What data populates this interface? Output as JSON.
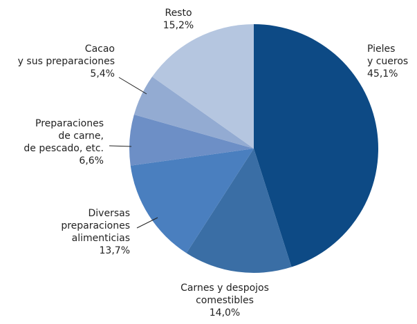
{
  "chart_data": {
    "type": "pie",
    "categories": [
      "Pieles\ny cueros",
      "Carnes y despojos\ncomestibles",
      "Diversas\npreparaciones\nalimenticias",
      "Preparaciones\nde carne,\nde pescado, etc.",
      "Cacao\ny sus preparaciones",
      "Resto"
    ],
    "values": [
      45.1,
      14.0,
      13.7,
      6.6,
      5.4,
      15.2
    ],
    "value_labels": [
      "45,1%",
      "14,0%",
      "13,7%",
      "6,6%",
      "5,4%",
      "15,2%"
    ],
    "colors": [
      "#0d4a85",
      "#3a6ea5",
      "#4a7fbf",
      "#6d8fc6",
      "#93abd2",
      "#b5c6e0"
    ]
  }
}
